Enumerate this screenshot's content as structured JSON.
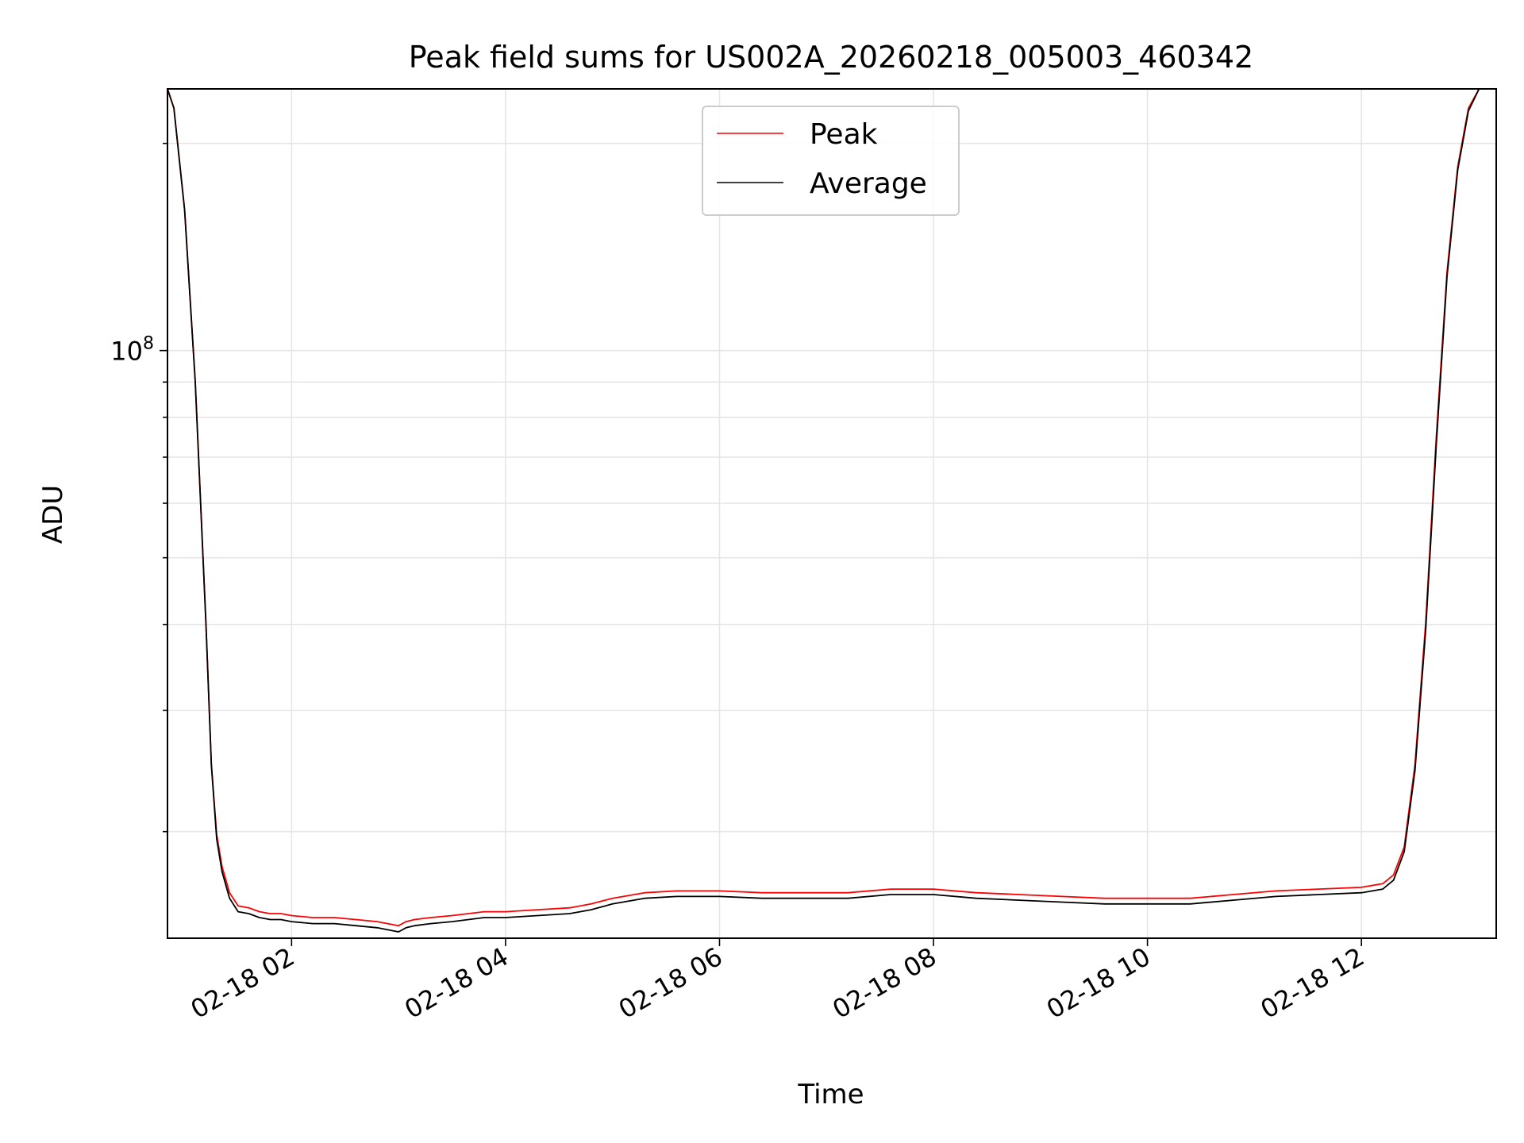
{
  "chart_data": {
    "type": "line",
    "title": "Peak field sums for US002A_20260218_005003_460342",
    "xlabel": "Time",
    "ylabel": "ADU",
    "y_scale": "log",
    "ylim": [
      14000000,
      240000000
    ],
    "xlim_hours": [
      0.84,
      13.26
    ],
    "x_ticks": [
      {
        "hours": 2,
        "label": "02-18 02"
      },
      {
        "hours": 4,
        "label": "02-18 04"
      },
      {
        "hours": 6,
        "label": "02-18 06"
      },
      {
        "hours": 8,
        "label": "02-18 08"
      },
      {
        "hours": 10,
        "label": "02-18 10"
      },
      {
        "hours": 12,
        "label": "02-18 12"
      }
    ],
    "y_major_ticks": [
      {
        "value": 100000000,
        "base": "10",
        "exp": "8"
      }
    ],
    "y_minor_ticks": [
      20000000,
      30000000,
      40000000,
      50000000,
      60000000,
      70000000,
      80000000,
      90000000,
      200000000
    ],
    "grid": true,
    "legend_position": "top-center",
    "series": [
      {
        "name": "Peak",
        "color": "#ff0000",
        "x_hours": [
          0.84,
          0.9,
          1.0,
          1.1,
          1.2,
          1.25,
          1.3,
          1.35,
          1.42,
          1.5,
          1.6,
          1.7,
          1.8,
          1.9,
          2.0,
          2.2,
          2.4,
          2.6,
          2.8,
          3.0,
          3.07,
          3.15,
          3.3,
          3.5,
          3.8,
          4.0,
          4.3,
          4.6,
          4.8,
          5.0,
          5.3,
          5.6,
          6.0,
          6.4,
          6.8,
          7.2,
          7.6,
          8.0,
          8.4,
          8.8,
          9.2,
          9.6,
          10.0,
          10.4,
          10.8,
          11.2,
          11.6,
          12.0,
          12.2,
          12.3,
          12.4,
          12.5,
          12.6,
          12.7,
          12.8,
          12.9,
          13.0,
          13.1,
          13.26
        ],
        "values_adu": [
          240000000,
          225000000,
          160000000,
          90000000,
          40000000,
          25000000,
          19800000,
          17800000,
          16300000,
          15600000,
          15500000,
          15300000,
          15200000,
          15200000,
          15100000,
          15000000,
          15000000,
          14900000,
          14800000,
          14600000,
          14800000,
          14900000,
          15000000,
          15100000,
          15300000,
          15300000,
          15400000,
          15500000,
          15700000,
          16000000,
          16300000,
          16400000,
          16400000,
          16300000,
          16300000,
          16300000,
          16500000,
          16500000,
          16300000,
          16200000,
          16100000,
          16000000,
          16000000,
          16000000,
          16200000,
          16400000,
          16500000,
          16600000,
          16800000,
          17300000,
          19000000,
          25000000,
          40000000,
          75000000,
          130000000,
          185000000,
          225000000,
          240000000,
          240000000
        ]
      },
      {
        "name": "Average",
        "color": "#000000",
        "x_hours": [
          0.84,
          0.9,
          1.0,
          1.1,
          1.2,
          1.25,
          1.3,
          1.35,
          1.42,
          1.5,
          1.6,
          1.7,
          1.8,
          1.9,
          2.0,
          2.2,
          2.4,
          2.6,
          2.8,
          3.0,
          3.07,
          3.15,
          3.3,
          3.5,
          3.8,
          4.0,
          4.3,
          4.6,
          4.8,
          5.0,
          5.3,
          5.6,
          6.0,
          6.4,
          6.8,
          7.2,
          7.6,
          8.0,
          8.4,
          8.8,
          9.2,
          9.6,
          10.0,
          10.4,
          10.8,
          11.2,
          11.6,
          12.0,
          12.2,
          12.3,
          12.4,
          12.5,
          12.6,
          12.7,
          12.8,
          12.9,
          13.0,
          13.1,
          13.26
        ],
        "values_adu": [
          240000000,
          225000000,
          160000000,
          90000000,
          40000000,
          25000000,
          19500000,
          17500000,
          16000000,
          15300000,
          15200000,
          15000000,
          14900000,
          14900000,
          14800000,
          14700000,
          14700000,
          14600000,
          14500000,
          14300000,
          14500000,
          14600000,
          14700000,
          14800000,
          15000000,
          15000000,
          15100000,
          15200000,
          15400000,
          15700000,
          16000000,
          16100000,
          16100000,
          16000000,
          16000000,
          16000000,
          16200000,
          16200000,
          16000000,
          15900000,
          15800000,
          15700000,
          15700000,
          15700000,
          15900000,
          16100000,
          16200000,
          16300000,
          16500000,
          17000000,
          18700000,
          24500000,
          39000000,
          73000000,
          128000000,
          183000000,
          223000000,
          240000000,
          240000000
        ]
      }
    ]
  }
}
